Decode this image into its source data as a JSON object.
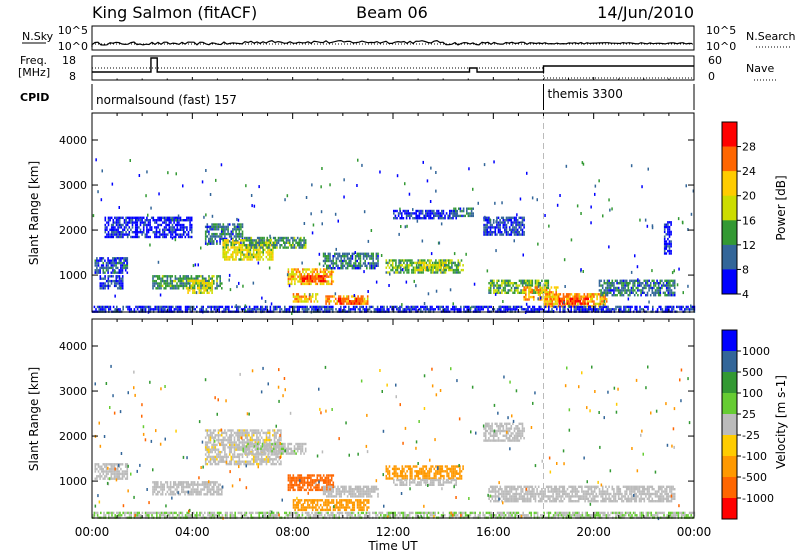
{
  "header": {
    "station": "King Salmon (fitACF)",
    "beam": "Beam 06",
    "date": "14/Jun/2010"
  },
  "noise_panel": {
    "left_label": "N.Sky",
    "right_label": "N.Search",
    "left_ticks": [
      "10^5",
      "10^0"
    ],
    "right_ticks": [
      "10^5",
      "10^0"
    ]
  },
  "freq_panel": {
    "left_label_line1": "Freq.",
    "left_label_line2": "[MHz]",
    "right_label": "Nave",
    "left_ticks": [
      "18",
      "8"
    ],
    "right_ticks": [
      "60",
      "0"
    ]
  },
  "cpid": {
    "label": "CPID",
    "segments": [
      {
        "start_hour": 0,
        "end_hour": 18,
        "text": "normalsound (fast) 157"
      },
      {
        "start_hour": 18,
        "end_hour": 24,
        "text": "themis 3300"
      }
    ]
  },
  "x_axis": {
    "title": "Time UT",
    "tick_labels": [
      "00:00",
      "04:00",
      "08:00",
      "12:00",
      "16:00",
      "20:00",
      "00:00"
    ],
    "range_hours": [
      0,
      24
    ]
  },
  "chart_data": [
    {
      "type": "heatmap",
      "quantity": "power",
      "ylabel": "Slant Range [km]",
      "ylim": [
        180,
        4600
      ],
      "y_ticks": [
        1000,
        2000,
        3000,
        4000
      ],
      "colorbar_label": "Power [dB]",
      "colorbar_range": [
        0,
        32
      ],
      "colorbar_ticks": [
        "28",
        "24",
        "20",
        "16",
        "12",
        "8",
        "4"
      ],
      "colorbar_colors": [
        "#ff0000",
        "#ff6600",
        "#ffcc00",
        "#ccdd00",
        "#339933",
        "#336699",
        "#0000ff"
      ],
      "echo_regions": [
        {
          "t0": 0.1,
          "t1": 1.4,
          "r0": 1050,
          "r1": 1400,
          "level": 8
        },
        {
          "t0": 0.3,
          "t1": 1.2,
          "r0": 700,
          "r1": 1000,
          "level": 6
        },
        {
          "t0": 2.4,
          "t1": 5.2,
          "r0": 700,
          "r1": 1000,
          "level": 12
        },
        {
          "t0": 3.8,
          "t1": 4.8,
          "r0": 600,
          "r1": 900,
          "level": 18
        },
        {
          "t0": 4.5,
          "t1": 6.0,
          "r0": 1700,
          "r1": 2150,
          "level": 10
        },
        {
          "t0": 5.2,
          "t1": 7.2,
          "r0": 1350,
          "r1": 1800,
          "level": 18
        },
        {
          "t0": 6.0,
          "t1": 8.5,
          "r0": 1600,
          "r1": 1850,
          "level": 12
        },
        {
          "t0": 7.8,
          "t1": 9.6,
          "r0": 800,
          "r1": 1150,
          "level": 20
        },
        {
          "t0": 8.3,
          "t1": 9.3,
          "r0": 850,
          "r1": 1000,
          "level": 26
        },
        {
          "t0": 8.0,
          "t1": 9.0,
          "r0": 400,
          "r1": 600,
          "level": 20
        },
        {
          "t0": 9.3,
          "t1": 11.0,
          "r0": 350,
          "r1": 550,
          "level": 22
        },
        {
          "t0": 9.8,
          "t1": 10.8,
          "r0": 350,
          "r1": 500,
          "level": 26
        },
        {
          "t0": 9.2,
          "t1": 11.4,
          "r0": 1150,
          "r1": 1500,
          "level": 10
        },
        {
          "t0": 11.7,
          "t1": 14.8,
          "r0": 1050,
          "r1": 1350,
          "level": 14
        },
        {
          "t0": 13.0,
          "t1": 14.2,
          "r0": 1100,
          "r1": 1300,
          "level": 18
        },
        {
          "t0": 12.0,
          "t1": 14.5,
          "r0": 2250,
          "r1": 2450,
          "level": 6
        },
        {
          "t0": 14.4,
          "t1": 15.2,
          "r0": 2300,
          "r1": 2500,
          "level": 10
        },
        {
          "t0": 15.6,
          "t1": 17.2,
          "r0": 1900,
          "r1": 2300,
          "level": 7
        },
        {
          "t0": 15.8,
          "t1": 18.2,
          "r0": 600,
          "r1": 900,
          "level": 14
        },
        {
          "t0": 17.2,
          "t1": 18.6,
          "r0": 450,
          "r1": 750,
          "level": 22
        },
        {
          "t0": 18.0,
          "t1": 20.5,
          "r0": 300,
          "r1": 600,
          "level": 22
        },
        {
          "t0": 18.6,
          "t1": 19.8,
          "r0": 350,
          "r1": 500,
          "level": 27
        },
        {
          "t0": 20.2,
          "t1": 23.2,
          "r0": 550,
          "r1": 900,
          "level": 10
        },
        {
          "t0": 0.0,
          "t1": 24.0,
          "r0": 180,
          "r1": 320,
          "level": 6
        },
        {
          "t0": 22.8,
          "t1": 23.1,
          "r0": 1500,
          "r1": 2200,
          "level": 5
        },
        {
          "t0": 0.5,
          "t1": 4.0,
          "r0": 1850,
          "r1": 2300,
          "level": 5
        }
      ]
    },
    {
      "type": "heatmap",
      "quantity": "velocity",
      "ylabel": "Slant Range [km]",
      "ylim": [
        180,
        4600
      ],
      "y_ticks": [
        1000,
        2000,
        3000,
        4000
      ],
      "colorbar_label": "Velocity [m s-1]",
      "colorbar_ticks": [
        "1000",
        "500",
        "100",
        "25",
        "-25",
        "-100",
        "-500",
        "-1000"
      ],
      "colorbar_colors": [
        "#0000ff",
        "#336699",
        "#339933",
        "#66cc33",
        "#bbbbbb",
        "#ffcc00",
        "#ff9900",
        "#ff6600",
        "#ff0000"
      ],
      "echo_regions": [
        {
          "t0": 0.1,
          "t1": 1.4,
          "r0": 1050,
          "r1": 1400,
          "v": 0
        },
        {
          "t0": 2.4,
          "t1": 5.2,
          "r0": 700,
          "r1": 1000,
          "v": 0
        },
        {
          "t0": 4.5,
          "t1": 7.5,
          "r0": 1400,
          "r1": 2150,
          "v": -10
        },
        {
          "t0": 6.0,
          "t1": 8.5,
          "r0": 1600,
          "r1": 1850,
          "v": 10
        },
        {
          "t0": 7.8,
          "t1": 9.6,
          "r0": 800,
          "r1": 1150,
          "v": -600
        },
        {
          "t0": 8.0,
          "t1": 11.0,
          "r0": 350,
          "r1": 600,
          "v": -120
        },
        {
          "t0": 9.2,
          "t1": 11.4,
          "r0": 650,
          "r1": 900,
          "v": 0
        },
        {
          "t0": 11.7,
          "t1": 14.8,
          "r0": 1050,
          "r1": 1350,
          "v": -150
        },
        {
          "t0": 12.0,
          "t1": 14.5,
          "r0": 900,
          "r1": 1050,
          "v": 0
        },
        {
          "t0": 15.6,
          "t1": 17.2,
          "r0": 1900,
          "r1": 2300,
          "v": 0
        },
        {
          "t0": 15.8,
          "t1": 23.2,
          "r0": 550,
          "r1": 900,
          "v": 0
        },
        {
          "t0": 0.0,
          "t1": 24.0,
          "r0": 180,
          "r1": 320,
          "v": 20
        }
      ]
    }
  ]
}
